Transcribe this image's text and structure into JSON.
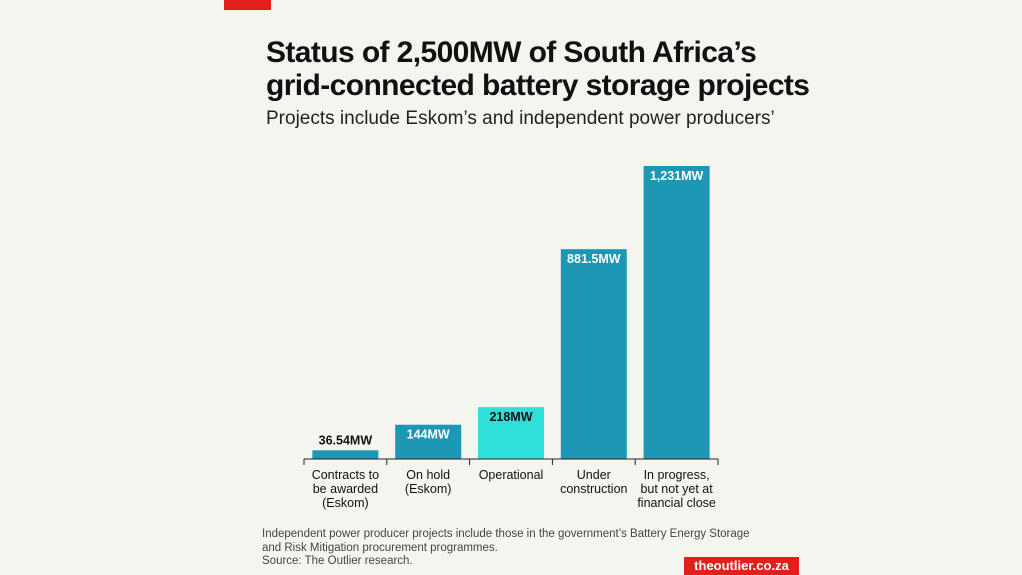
{
  "title_line1": "Status of 2,500MW of South Africa’s",
  "title_line2": "grid-connected battery storage projects",
  "subtitle": "Projects include Eskom’s and independent power producers’",
  "colors": {
    "bar_primary": "#1d97b4",
    "bar_highlight": "#2ee0d8",
    "brand_red": "#e0201b",
    "background": "#f5f5f0"
  },
  "chart_data": {
    "type": "bar",
    "categories": [
      [
        "Contracts to",
        "be awarded",
        "(Eskom)"
      ],
      [
        "On hold",
        "(Eskom)"
      ],
      [
        "Operational"
      ],
      [
        "Under",
        "construction"
      ],
      [
        "In progress,",
        "but not yet at",
        "financial close"
      ]
    ],
    "values": [
      36.54,
      144,
      218,
      881.5,
      1231
    ],
    "value_labels": [
      "36.54MW",
      "144MW",
      "218MW",
      "881.5MW",
      "1,231MW"
    ],
    "highlight_index": 2,
    "ylim": [
      0,
      1231
    ],
    "grid": false,
    "legend": "none",
    "xlabel": "",
    "ylabel": ""
  },
  "footnote": {
    "line1": "Independent power producer projects include those in the government’s Battery Energy Storage",
    "line2": "and Risk Mitigation procurement programmes.",
    "line3": "Source: The Outlier research."
  },
  "brand": "theoutlier.co.za"
}
